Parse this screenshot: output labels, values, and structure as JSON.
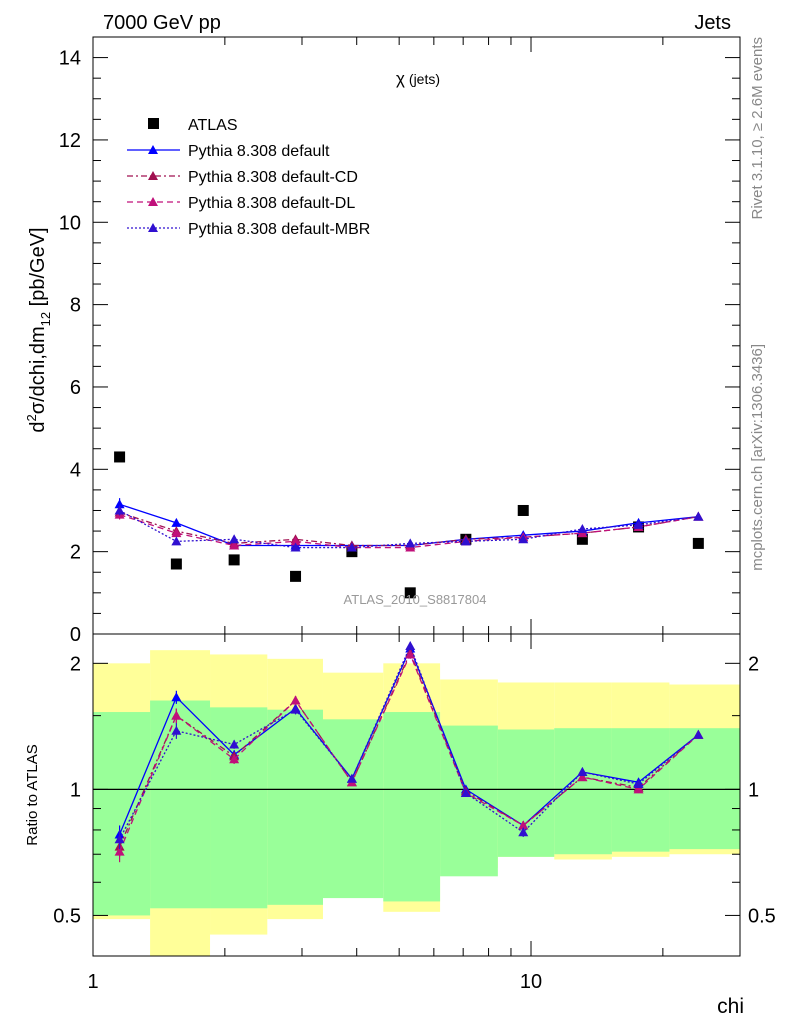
{
  "header": {
    "left": "7000 GeV pp",
    "right": "Jets"
  },
  "side_labels": {
    "rivet": "Rivet 3.1.10, ≥ 2.6M events",
    "mcplots": "mcplots.cern.ch [arXiv:1306.3436]"
  },
  "chart_data": [
    {
      "type": "line",
      "panel": "main",
      "title": "χ (jets)",
      "title_symbol": "χ",
      "title_rest": "(jets)",
      "watermark": "ATLAS_2010_S8817804",
      "xlabel": "chi",
      "ylabel": "d²σ/dchi,dm₁₂ [pb/GeV]",
      "ylabel_parts": {
        "d": "d",
        "sup": "2",
        "mid": "σ/dchi,dm",
        "sub": "12",
        "end": " [pb/GeV]"
      },
      "xscale": "log",
      "xlim": [
        1,
        30
      ],
      "ylim": [
        0,
        14.5
      ],
      "yticks": [
        0,
        2,
        4,
        6,
        8,
        10,
        12,
        14
      ],
      "ytick_labels": [
        "0",
        "2",
        "4",
        "6",
        "8",
        "10",
        "12",
        "14"
      ],
      "legend_position": "top-left",
      "x": [
        1.15,
        1.55,
        2.1,
        2.9,
        3.9,
        5.3,
        7.1,
        9.6,
        13.1,
        17.6,
        24.1
      ],
      "series": [
        {
          "name": "ATLAS",
          "color": "#000000",
          "marker": "square",
          "line": "none",
          "values": [
            4.3,
            1.7,
            1.8,
            1.4,
            2.0,
            1.0,
            2.3,
            3.0,
            2.3,
            2.6,
            2.2
          ]
        },
        {
          "name": "Pythia 8.308 default",
          "color": "#0000ff",
          "marker": "triangle",
          "line": "solid",
          "values": [
            3.15,
            2.7,
            2.15,
            2.15,
            2.15,
            2.15,
            2.3,
            2.4,
            2.5,
            2.7,
            2.85
          ],
          "errors": [
            0.15,
            0.08,
            0.05,
            0.04,
            0.04,
            0.04,
            0.04,
            0.04,
            0.04,
            0.04,
            0.04
          ]
        },
        {
          "name": "Pythia 8.308 default-CD",
          "color": "#a01050",
          "marker": "triangle",
          "line": "dashdot",
          "values": [
            2.95,
            2.5,
            2.2,
            2.3,
            2.15,
            2.15,
            2.3,
            2.35,
            2.45,
            2.6,
            2.85
          ],
          "errors": [
            0.12,
            0.08,
            0.05,
            0.04,
            0.04,
            0.04,
            0.04,
            0.04,
            0.04,
            0.04,
            0.04
          ]
        },
        {
          "name": "Pythia 8.308 default-DL",
          "color": "#c0107a",
          "marker": "triangle",
          "line": "dashed",
          "values": [
            2.9,
            2.45,
            2.15,
            2.25,
            2.1,
            2.1,
            2.25,
            2.35,
            2.45,
            2.6,
            2.85
          ],
          "errors": [
            0.12,
            0.08,
            0.05,
            0.04,
            0.04,
            0.04,
            0.04,
            0.04,
            0.04,
            0.04,
            0.04
          ]
        },
        {
          "name": "Pythia 8.308 default-MBR",
          "color": "#3010d0",
          "marker": "triangle",
          "line": "dotted",
          "values": [
            3.0,
            2.25,
            2.3,
            2.1,
            2.1,
            2.2,
            2.25,
            2.3,
            2.55,
            2.65,
            2.85
          ],
          "errors": [
            0.12,
            0.08,
            0.05,
            0.04,
            0.04,
            0.04,
            0.04,
            0.04,
            0.04,
            0.04,
            0.04
          ]
        }
      ]
    },
    {
      "type": "line",
      "panel": "ratio",
      "ylabel": "Ratio to ATLAS",
      "xlabel": "chi",
      "xscale": "log",
      "yscale": "log",
      "xlim": [
        1,
        30
      ],
      "ylim": [
        0.4,
        2.35
      ],
      "yticks": [
        0.5,
        1,
        2
      ],
      "ytick_labels": [
        "0.5",
        "1",
        "2"
      ],
      "xtick_labels": [
        "1",
        "10"
      ],
      "x": [
        1.15,
        1.55,
        2.1,
        2.9,
        3.9,
        5.3,
        7.1,
        9.6,
        13.1,
        17.6,
        24.1
      ],
      "bins": [
        1.0,
        1.35,
        1.85,
        2.5,
        3.35,
        4.6,
        6.2,
        8.4,
        11.3,
        15.3,
        20.7,
        30.0
      ],
      "band_outer": {
        "color": "#ffff99",
        "low": [
          0.49,
          0.37,
          0.45,
          0.49,
          0.6,
          0.51,
          0.65,
          0.69,
          0.68,
          0.69,
          0.7
        ],
        "high": [
          2.0,
          2.15,
          2.1,
          2.05,
          1.9,
          2.0,
          1.83,
          1.8,
          1.8,
          1.8,
          1.78
        ]
      },
      "band_inner": {
        "color": "#99ff99",
        "low": [
          0.5,
          0.52,
          0.52,
          0.53,
          0.55,
          0.54,
          0.62,
          0.69,
          0.7,
          0.71,
          0.72
        ],
        "high": [
          1.53,
          1.63,
          1.57,
          1.55,
          1.47,
          1.53,
          1.42,
          1.39,
          1.4,
          1.4,
          1.4
        ]
      },
      "series": [
        {
          "name": "Pythia 8.308 default",
          "color": "#0000ff",
          "line": "solid",
          "values": [
            0.78,
            1.66,
            1.21,
            1.56,
            1.06,
            2.17,
            1.0,
            0.82,
            1.1,
            1.04,
            1.35
          ],
          "errors": [
            0.04,
            0.06,
            0.03,
            0.04,
            0.02,
            0.05,
            0.02,
            0.02,
            0.02,
            0.02,
            0.02
          ]
        },
        {
          "name": "Pythia 8.308 default-CD",
          "color": "#a01050",
          "line": "dashdot",
          "values": [
            0.73,
            1.5,
            1.2,
            1.63,
            1.04,
            2.12,
            0.99,
            0.82,
            1.07,
            1.01,
            1.35
          ],
          "errors": [
            0.04,
            0.06,
            0.03,
            0.04,
            0.02,
            0.05,
            0.02,
            0.02,
            0.02,
            0.02,
            0.02
          ]
        },
        {
          "name": "Pythia 8.308 default-DL",
          "color": "#c0107a",
          "line": "dashed",
          "values": [
            0.71,
            1.5,
            1.18,
            1.63,
            1.04,
            2.1,
            0.98,
            0.82,
            1.07,
            1.0,
            1.35
          ],
          "errors": [
            0.04,
            0.06,
            0.03,
            0.04,
            0.02,
            0.05,
            0.02,
            0.02,
            0.02,
            0.02,
            0.02
          ]
        },
        {
          "name": "Pythia 8.308 default-MBR",
          "color": "#3010d0",
          "line": "dotted",
          "values": [
            0.76,
            1.38,
            1.28,
            1.55,
            1.06,
            2.2,
            0.98,
            0.79,
            1.1,
            1.03,
            1.35
          ],
          "errors": [
            0.04,
            0.06,
            0.03,
            0.04,
            0.02,
            0.05,
            0.02,
            0.02,
            0.02,
            0.02,
            0.02
          ]
        }
      ]
    }
  ]
}
